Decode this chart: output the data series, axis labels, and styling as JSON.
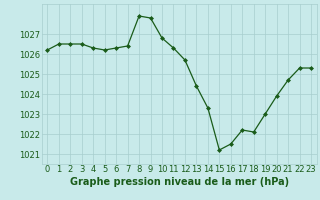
{
  "x": [
    0,
    1,
    2,
    3,
    4,
    5,
    6,
    7,
    8,
    9,
    10,
    11,
    12,
    13,
    14,
    15,
    16,
    17,
    18,
    19,
    20,
    21,
    22,
    23
  ],
  "y": [
    1026.2,
    1026.5,
    1026.5,
    1026.5,
    1026.3,
    1026.2,
    1026.3,
    1026.4,
    1027.9,
    1027.8,
    1026.8,
    1026.3,
    1025.7,
    1024.4,
    1023.3,
    1021.2,
    1021.5,
    1022.2,
    1022.1,
    1023.0,
    1023.9,
    1024.7,
    1025.3,
    1025.3
  ],
  "line_color": "#1a5c1a",
  "marker": "D",
  "marker_size": 2,
  "bg_color": "#c8eaea",
  "grid_color": "#a8cece",
  "xlabel": "Graphe pression niveau de la mer (hPa)",
  "xlabel_color": "#1a5c1a",
  "xlabel_fontsize": 7,
  "tick_color": "#1a5c1a",
  "tick_fontsize": 6,
  "ylim": [
    1020.5,
    1028.5
  ],
  "yticks": [
    1021,
    1022,
    1023,
    1024,
    1025,
    1026,
    1027
  ],
  "xlim": [
    -0.5,
    23.5
  ]
}
